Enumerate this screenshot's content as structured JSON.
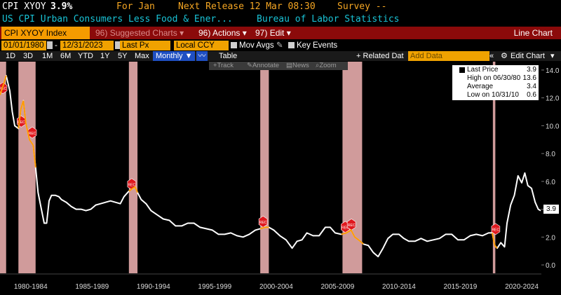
{
  "header": {
    "ticker": "CPI XYOY",
    "value": "3.9%",
    "for_label": "For Jan",
    "next_release": "Next Release 12 Mar 08:30",
    "survey": "Survey --",
    "description": "US CPI Urban Consumers Less Food & Ener...",
    "source": "Bureau of Labor Statistics"
  },
  "toolbar": {
    "security": "CPI XYOY Index",
    "suggested": "Suggested Charts",
    "suggested_key": "96",
    "actions": "Actions",
    "actions_key": "96)",
    "edit": "Edit",
    "edit_key": "97)",
    "view_title": "Line Chart"
  },
  "daterow": {
    "start": "01/01/1980",
    "end": "12/31/2023",
    "field": "Last Px",
    "currency": "Local CCY",
    "mov_avgs": "Mov Avgs",
    "key_events": "Key Events"
  },
  "periodrow": {
    "periods": [
      "1D",
      "3D",
      "1M",
      "6M",
      "YTD",
      "1Y",
      "5Y",
      "Max"
    ],
    "frequency": "Monthly",
    "table": "Table",
    "related": "Related Dat",
    "add_data": "Add Data",
    "edit_chart": "Edit Chart"
  },
  "ghost_tools": [
    "Track",
    "Annotate",
    "News",
    "Zoom"
  ],
  "legend": {
    "last_price_label": "Last Price",
    "last_price_value": "3.9",
    "high_label": "High on 06/30/80",
    "high_value": "13.6",
    "avg_label": "Average",
    "avg_value": "3.4",
    "low_label": "Low on 10/31/10",
    "low_value": "0.6"
  },
  "last_value_tag": "3.9",
  "event_marker_label": "REC",
  "colors": {
    "background": "#000000",
    "line": "#ffffff",
    "recession_band": "#f4b6b6",
    "accent_orange": "#f0a200",
    "title_orange": "#f5a623",
    "header_cyan": "#19c3d6",
    "toolbar_red": "#8b0a0a",
    "highlight_orange": "#ff9a00"
  },
  "chart_data": {
    "type": "line",
    "title": "",
    "xlabel": "",
    "ylabel": "",
    "xlim": [
      1980.0,
      2024.1
    ],
    "ylim": [
      -0.6,
      14.6
    ],
    "y_ticks": [
      "0.0",
      "2.0",
      "4.0",
      "6.0",
      "8.0",
      "10.0",
      "12.0",
      "14.0"
    ],
    "y_tick_values": [
      0,
      2,
      4,
      6,
      8,
      10,
      12,
      14
    ],
    "x_tick_labels": [
      "1980-1984",
      "1985-1989",
      "1990-1994",
      "1995-1999",
      "2000-2004",
      "2005-2009",
      "2010-2014",
      "2015-2019",
      "2020-2024"
    ],
    "x_tick_centers": [
      1982.5,
      1987.5,
      1992.5,
      1997.5,
      2002.5,
      2007.5,
      2012.5,
      2017.5,
      2022.5
    ],
    "recessions": [
      [
        1980.0,
        1980.5
      ],
      [
        1981.5,
        1982.9
      ],
      [
        1990.5,
        1991.2
      ],
      [
        2001.2,
        2001.9
      ],
      [
        2007.9,
        2009.5
      ],
      [
        2020.15,
        2020.35
      ]
    ],
    "rec_markers": [
      1980.0,
      1981.5,
      1982.4,
      1990.5,
      2001.2,
      2007.9,
      2008.4,
      2020.15
    ],
    "series": [
      {
        "values": [
          [
            1980.0,
            12.2
          ],
          [
            1980.3,
            13.0
          ],
          [
            1980.5,
            13.6
          ],
          [
            1980.8,
            12.5
          ],
          [
            1981.0,
            11.0
          ],
          [
            1981.2,
            10.0
          ],
          [
            1981.5,
            9.8
          ],
          [
            1981.7,
            11.2
          ],
          [
            1981.9,
            11.8
          ],
          [
            1982.1,
            10.2
          ],
          [
            1982.4,
            9.0
          ],
          [
            1982.7,
            8.6
          ],
          [
            1982.9,
            7.0
          ],
          [
            1983.1,
            5.2
          ],
          [
            1983.3,
            4.3
          ],
          [
            1983.6,
            3.0
          ],
          [
            1983.8,
            3.0
          ],
          [
            1984.0,
            4.6
          ],
          [
            1984.2,
            5.0
          ],
          [
            1984.5,
            5.0
          ],
          [
            1984.8,
            4.9
          ],
          [
            1985.0,
            4.7
          ],
          [
            1985.4,
            4.5
          ],
          [
            1985.8,
            4.2
          ],
          [
            1986.2,
            4.0
          ],
          [
            1986.6,
            4.0
          ],
          [
            1987.0,
            3.9
          ],
          [
            1987.4,
            4.0
          ],
          [
            1987.8,
            4.3
          ],
          [
            1988.2,
            4.4
          ],
          [
            1988.6,
            4.5
          ],
          [
            1989.0,
            4.6
          ],
          [
            1989.4,
            4.5
          ],
          [
            1989.8,
            4.4
          ],
          [
            1990.1,
            4.9
          ],
          [
            1990.5,
            5.3
          ],
          [
            1990.8,
            5.5
          ],
          [
            1991.0,
            5.6
          ],
          [
            1991.2,
            5.2
          ],
          [
            1991.5,
            4.7
          ],
          [
            1991.9,
            4.4
          ],
          [
            1992.3,
            3.9
          ],
          [
            1992.8,
            3.6
          ],
          [
            1993.3,
            3.3
          ],
          [
            1993.8,
            3.2
          ],
          [
            1994.3,
            2.8
          ],
          [
            1994.8,
            2.8
          ],
          [
            1995.3,
            3.0
          ],
          [
            1995.8,
            3.0
          ],
          [
            1996.3,
            2.7
          ],
          [
            1996.8,
            2.6
          ],
          [
            1997.3,
            2.5
          ],
          [
            1997.8,
            2.2
          ],
          [
            1998.3,
            2.2
          ],
          [
            1998.8,
            2.3
          ],
          [
            1999.3,
            2.1
          ],
          [
            1999.8,
            2.0
          ],
          [
            2000.3,
            2.2
          ],
          [
            2000.8,
            2.5
          ],
          [
            2001.2,
            2.6
          ],
          [
            2001.6,
            2.7
          ],
          [
            2001.9,
            2.7
          ],
          [
            2002.3,
            2.5
          ],
          [
            2002.8,
            2.1
          ],
          [
            2003.3,
            1.8
          ],
          [
            2003.8,
            1.2
          ],
          [
            2004.2,
            1.7
          ],
          [
            2004.6,
            1.8
          ],
          [
            2005.0,
            2.3
          ],
          [
            2005.5,
            2.1
          ],
          [
            2006.0,
            2.1
          ],
          [
            2006.5,
            2.7
          ],
          [
            2006.9,
            2.7
          ],
          [
            2007.3,
            2.3
          ],
          [
            2007.8,
            2.2
          ],
          [
            2008.2,
            2.3
          ],
          [
            2008.6,
            2.5
          ],
          [
            2008.9,
            2.0
          ],
          [
            2009.2,
            1.8
          ],
          [
            2009.6,
            1.5
          ],
          [
            2010.0,
            1.4
          ],
          [
            2010.4,
            0.9
          ],
          [
            2010.8,
            0.6
          ],
          [
            2011.2,
            1.2
          ],
          [
            2011.6,
            1.9
          ],
          [
            2012.0,
            2.2
          ],
          [
            2012.5,
            2.2
          ],
          [
            2012.9,
            1.9
          ],
          [
            2013.3,
            1.7
          ],
          [
            2013.8,
            1.7
          ],
          [
            2014.3,
            1.9
          ],
          [
            2014.8,
            1.7
          ],
          [
            2015.3,
            1.8
          ],
          [
            2015.8,
            1.9
          ],
          [
            2016.3,
            2.2
          ],
          [
            2016.8,
            2.2
          ],
          [
            2017.3,
            1.8
          ],
          [
            2017.8,
            1.8
          ],
          [
            2018.3,
            2.1
          ],
          [
            2018.8,
            2.2
          ],
          [
            2019.3,
            2.1
          ],
          [
            2019.8,
            2.3
          ],
          [
            2020.1,
            2.3
          ],
          [
            2020.3,
            1.4
          ],
          [
            2020.5,
            1.2
          ],
          [
            2020.8,
            1.6
          ],
          [
            2021.1,
            1.3
          ],
          [
            2021.3,
            3.0
          ],
          [
            2021.6,
            4.3
          ],
          [
            2021.9,
            5.0
          ],
          [
            2022.2,
            6.4
          ],
          [
            2022.5,
            5.9
          ],
          [
            2022.75,
            6.6
          ],
          [
            2023.0,
            5.7
          ],
          [
            2023.3,
            5.5
          ],
          [
            2023.6,
            4.5
          ],
          [
            2023.85,
            4.0
          ],
          [
            2024.05,
            3.9
          ]
        ]
      }
    ]
  }
}
